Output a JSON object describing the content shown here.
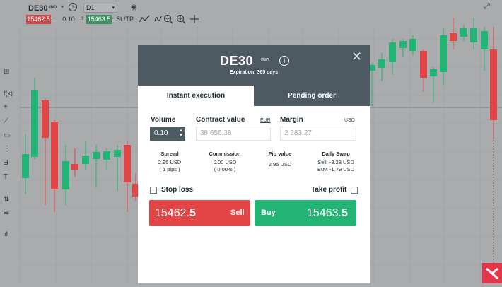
{
  "toolbar": {
    "symbol": "DE30",
    "symbol_tag": "IND",
    "timeframe": "D1",
    "sell_price": "15462.5",
    "volume": "0.10",
    "buy_price": "15463.5",
    "sltp_label": "SL/TP",
    "minus": "−",
    "plus": "+"
  },
  "left_tools": [
    "⊞",
    "f(x)",
    "+",
    "⟋",
    "▭",
    "⋮",
    "Ǝ",
    "T",
    "⇅",
    "≋",
    "⋔"
  ],
  "modal": {
    "title": "DE30",
    "tag": "IND",
    "info_glyph": "i",
    "expiration": "Expiration: 365 days",
    "close_glyph": "✕",
    "tabs": [
      "Instant execution",
      "Pending order"
    ],
    "volume_label": "Volume",
    "volume_value": "0.10",
    "contract_label": "Contract value",
    "contract_unit": "EUR",
    "contract_value": "38 656.38",
    "margin_label": "Margin",
    "margin_unit": "USD",
    "margin_value": "2 283.27",
    "stats": [
      {
        "head": "Spread",
        "lines": [
          "2.95 USD",
          "( 1 pips )"
        ]
      },
      {
        "head": "Commission",
        "lines": [
          "0.00 USD",
          "( 0.00% )"
        ]
      },
      {
        "head": "Pip value",
        "lines": [
          "2.95 USD"
        ]
      },
      {
        "head": "Daily Swap",
        "lines": [
          "Sell: -3.28 USD",
          "Buy: -1.79 USD"
        ]
      }
    ],
    "stop_loss_label": "Stop loss",
    "take_profit_label": "Take profit",
    "sell": {
      "price_main": "15462.",
      "price_last": "5",
      "label": "Sell"
    },
    "buy": {
      "label": "Buy",
      "price_main": "15463.",
      "price_last": "5"
    }
  },
  "colors": {
    "bull": "#22b474",
    "bear": "#e34546",
    "modal_header": "#4d5a62",
    "logo": "#e4364a"
  }
}
